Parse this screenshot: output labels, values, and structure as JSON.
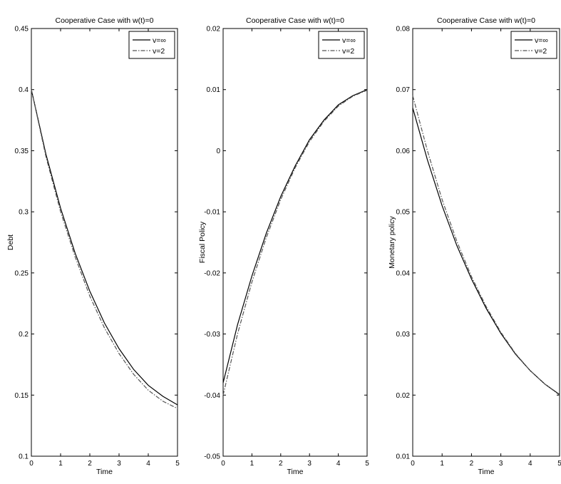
{
  "chart_data": [
    {
      "type": "line",
      "title": "Cooperative Case with w(t)=0",
      "xlabel": "Time",
      "ylabel": "Debt",
      "xlim": [
        0,
        5
      ],
      "ylim": [
        0.1,
        0.45
      ],
      "x_ticks": [
        "0",
        "1",
        "2",
        "3",
        "4",
        "5"
      ],
      "y_ticks": [
        "0.1",
        "0.15",
        "0.2",
        "0.25",
        "0.3",
        "0.35",
        "0.4",
        "0.45"
      ],
      "legend_position": "top-right",
      "grid": false,
      "x": [
        0,
        0.5,
        1,
        1.5,
        2,
        2.5,
        3,
        3.5,
        4,
        4.5,
        5
      ],
      "series": [
        {
          "name": "v=∞",
          "style": "solid",
          "color": "#000000",
          "values": [
            0.4,
            0.347,
            0.303,
            0.266,
            0.235,
            0.209,
            0.188,
            0.171,
            0.158,
            0.149,
            0.142
          ]
        },
        {
          "name": "v=2",
          "style": "dashdot",
          "color": "#555555",
          "values": [
            0.4,
            0.345,
            0.3,
            0.263,
            0.231,
            0.205,
            0.184,
            0.167,
            0.154,
            0.145,
            0.139
          ]
        }
      ]
    },
    {
      "type": "line",
      "title": "Cooperative Case with w(t)=0",
      "xlabel": "Time",
      "ylabel": "Fiscal Policy",
      "xlim": [
        0,
        5
      ],
      "ylim": [
        -0.05,
        0.02
      ],
      "x_ticks": [
        "0",
        "1",
        "2",
        "3",
        "4",
        "5"
      ],
      "y_ticks": [
        "-0.05",
        "-0.04",
        "-0.03",
        "-0.02",
        "-0.01",
        "0",
        "0.01",
        "0.02"
      ],
      "legend_position": "top-right",
      "grid": false,
      "x": [
        0,
        0.5,
        1,
        1.5,
        2,
        2.5,
        3,
        3.5,
        4,
        4.5,
        5
      ],
      "series": [
        {
          "name": "v=∞",
          "style": "solid",
          "color": "#000000",
          "values": [
            -0.038,
            -0.0285,
            -0.0205,
            -0.0135,
            -0.0075,
            -0.0025,
            0.0018,
            0.005,
            0.0075,
            0.009,
            0.01
          ]
        },
        {
          "name": "v=2",
          "style": "dashdot",
          "color": "#555555",
          "values": [
            -0.04,
            -0.03,
            -0.0215,
            -0.0142,
            -0.008,
            -0.0028,
            0.0015,
            0.0048,
            0.0073,
            0.0089,
            0.0099
          ]
        }
      ]
    },
    {
      "type": "line",
      "title": "Cooperative Case with w(t)=0",
      "xlabel": "Time",
      "ylabel": "Monetary policy",
      "xlim": [
        0,
        5
      ],
      "ylim": [
        0.01,
        0.08
      ],
      "x_ticks": [
        "0",
        "1",
        "2",
        "3",
        "4",
        "5"
      ],
      "y_ticks": [
        "0.01",
        "0.02",
        "0.03",
        "0.04",
        "0.05",
        "0.06",
        "0.07",
        "0.08"
      ],
      "legend_position": "top-right",
      "grid": false,
      "x": [
        0,
        0.5,
        1,
        1.5,
        2,
        2.5,
        3,
        3.5,
        4,
        4.5,
        5
      ],
      "series": [
        {
          "name": "v=∞",
          "style": "solid",
          "color": "#000000",
          "values": [
            0.067,
            0.0585,
            0.051,
            0.0445,
            0.039,
            0.0342,
            0.0301,
            0.0267,
            0.024,
            0.0218,
            0.0201
          ]
        },
        {
          "name": "v=2",
          "style": "dashdot",
          "color": "#555555",
          "values": [
            0.069,
            0.06,
            0.052,
            0.0452,
            0.0394,
            0.0345,
            0.0303,
            0.0268,
            0.024,
            0.0218,
            0.02
          ]
        }
      ]
    }
  ]
}
